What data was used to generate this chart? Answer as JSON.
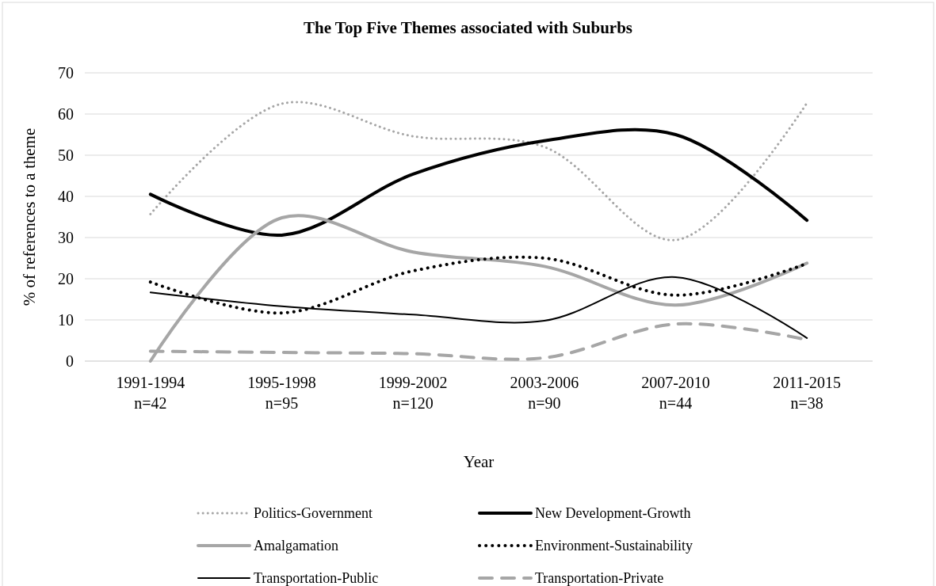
{
  "chart_data": {
    "type": "line",
    "title": "The Top Five Themes associated with Suburbs",
    "xlabel": "Year",
    "ylabel": "% of references to a theme",
    "categories": [
      "1991-1994\nn=42",
      "1995-1998\nn=95",
      "1999-2002\nn=120",
      "2003-2006\nn=90",
      "2007-2010\nn=44",
      "2011-2015\nn=38"
    ],
    "ylim": [
      0,
      70
    ],
    "yticks": [
      0,
      10,
      20,
      30,
      40,
      50,
      60,
      70
    ],
    "grid": "y",
    "legend": "bottom",
    "marker": "none",
    "series": [
      {
        "name": "Politics-Government",
        "color": "#a6a6a6",
        "line_style": "dotted",
        "values": [
          35.7,
          62.5,
          54.6,
          52,
          29.4,
          62.7
        ]
      },
      {
        "name": "New Development-Growth",
        "color": "#000000",
        "line_style": "solid",
        "values": [
          40.5,
          30.6,
          45.4,
          53.5,
          55,
          34.2
        ]
      },
      {
        "name": "Amalgamation",
        "color": "#a6a6a6",
        "line_style": "solid",
        "values": [
          0,
          34.8,
          26.5,
          23,
          13.6,
          23.8
        ]
      },
      {
        "name": "Environment-Sustainability",
        "color": "#000000",
        "line_style": "dotted",
        "values": [
          19.2,
          11.7,
          21.9,
          25,
          16,
          23.7
        ]
      },
      {
        "name": "Transportation-Public",
        "color": "#000000",
        "line_style": "solid",
        "values": [
          16.7,
          13.3,
          11.3,
          9.8,
          20.4,
          5.6
        ]
      },
      {
        "name": "Transportation-Private",
        "color": "#a6a6a6",
        "line_style": "dashed",
        "values": [
          2.4,
          2.1,
          1.8,
          0.8,
          9,
          5.2
        ]
      }
    ]
  }
}
